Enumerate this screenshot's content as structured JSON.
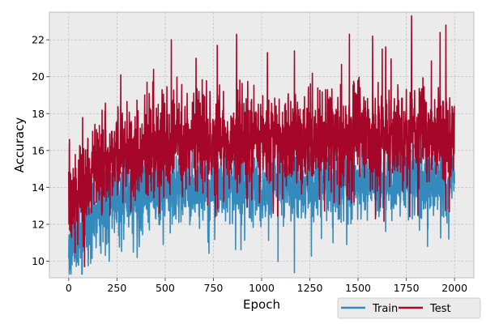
{
  "chart_data": {
    "type": "line",
    "xlabel": "Epoch",
    "ylabel": "Accuracy",
    "xlim": [
      -100,
      2100
    ],
    "ylim": [
      9.1,
      23.5
    ],
    "x_ticks": [
      0,
      250,
      500,
      750,
      1000,
      1250,
      1500,
      1750,
      2000
    ],
    "y_ticks": [
      10,
      12,
      14,
      16,
      18,
      20,
      22
    ],
    "grid": true,
    "grid_style": "dashed",
    "background": "#ebebeb",
    "legend": {
      "placement": "bottom-right-outside",
      "ncol": 2
    },
    "series": [
      {
        "name": "Train",
        "color": "#348abd",
        "trend": [
          [
            0,
            10.8
          ],
          [
            25,
            11.0
          ],
          [
            50,
            11.5
          ],
          [
            100,
            12.3
          ],
          [
            150,
            12.8
          ],
          [
            200,
            13.1
          ],
          [
            250,
            13.3
          ],
          [
            300,
            13.5
          ],
          [
            400,
            13.7
          ],
          [
            500,
            13.8
          ],
          [
            750,
            14.0
          ],
          [
            1000,
            14.1
          ],
          [
            1250,
            14.2
          ],
          [
            1500,
            14.3
          ],
          [
            1750,
            14.35
          ],
          [
            2000,
            14.4
          ]
        ],
        "noise_sd": 1.0,
        "peak_markers": [
          [
            250,
            17.6
          ],
          [
            360,
            16.1
          ],
          [
            1210,
            16.5
          ],
          [
            1830,
            16.1
          ]
        ],
        "trough_markers": [
          [
            10,
            10.0
          ],
          [
            50,
            9.8
          ],
          [
            490,
            10.9
          ],
          [
            1370,
            11.0
          ],
          [
            1860,
            10.8
          ],
          [
            1970,
            11.2
          ]
        ]
      },
      {
        "name": "Test",
        "color": "#a60628",
        "trend": [
          [
            0,
            13.2
          ],
          [
            25,
            13.5
          ],
          [
            50,
            13.9
          ],
          [
            100,
            14.6
          ],
          [
            150,
            15.1
          ],
          [
            200,
            15.4
          ],
          [
            250,
            15.7
          ],
          [
            300,
            15.9
          ],
          [
            400,
            16.1
          ],
          [
            500,
            16.3
          ],
          [
            750,
            16.5
          ],
          [
            1000,
            16.6
          ],
          [
            1250,
            16.7
          ],
          [
            1500,
            16.8
          ],
          [
            1750,
            16.85
          ],
          [
            2000,
            16.9
          ]
        ],
        "noise_sd": 1.3,
        "peak_markers": [
          [
            60,
            16.2
          ],
          [
            270,
            20.1
          ],
          [
            440,
            20.4
          ],
          [
            660,
            21.0
          ],
          [
            770,
            21.7
          ],
          [
            870,
            22.3
          ],
          [
            1030,
            21.3
          ],
          [
            1170,
            21.4
          ],
          [
            1455,
            22.3
          ],
          [
            1575,
            22.2
          ],
          [
            1625,
            21.5
          ],
          [
            1925,
            22.4
          ],
          [
            1955,
            22.8
          ]
        ],
        "trough_markers": [
          [
            15,
            11.3
          ],
          [
            75,
            10.8
          ],
          [
            470,
            12.6
          ],
          [
            760,
            12.4
          ],
          [
            1060,
            12.6
          ],
          [
            1590,
            12.3
          ],
          [
            1810,
            12.5
          ]
        ]
      }
    ]
  }
}
